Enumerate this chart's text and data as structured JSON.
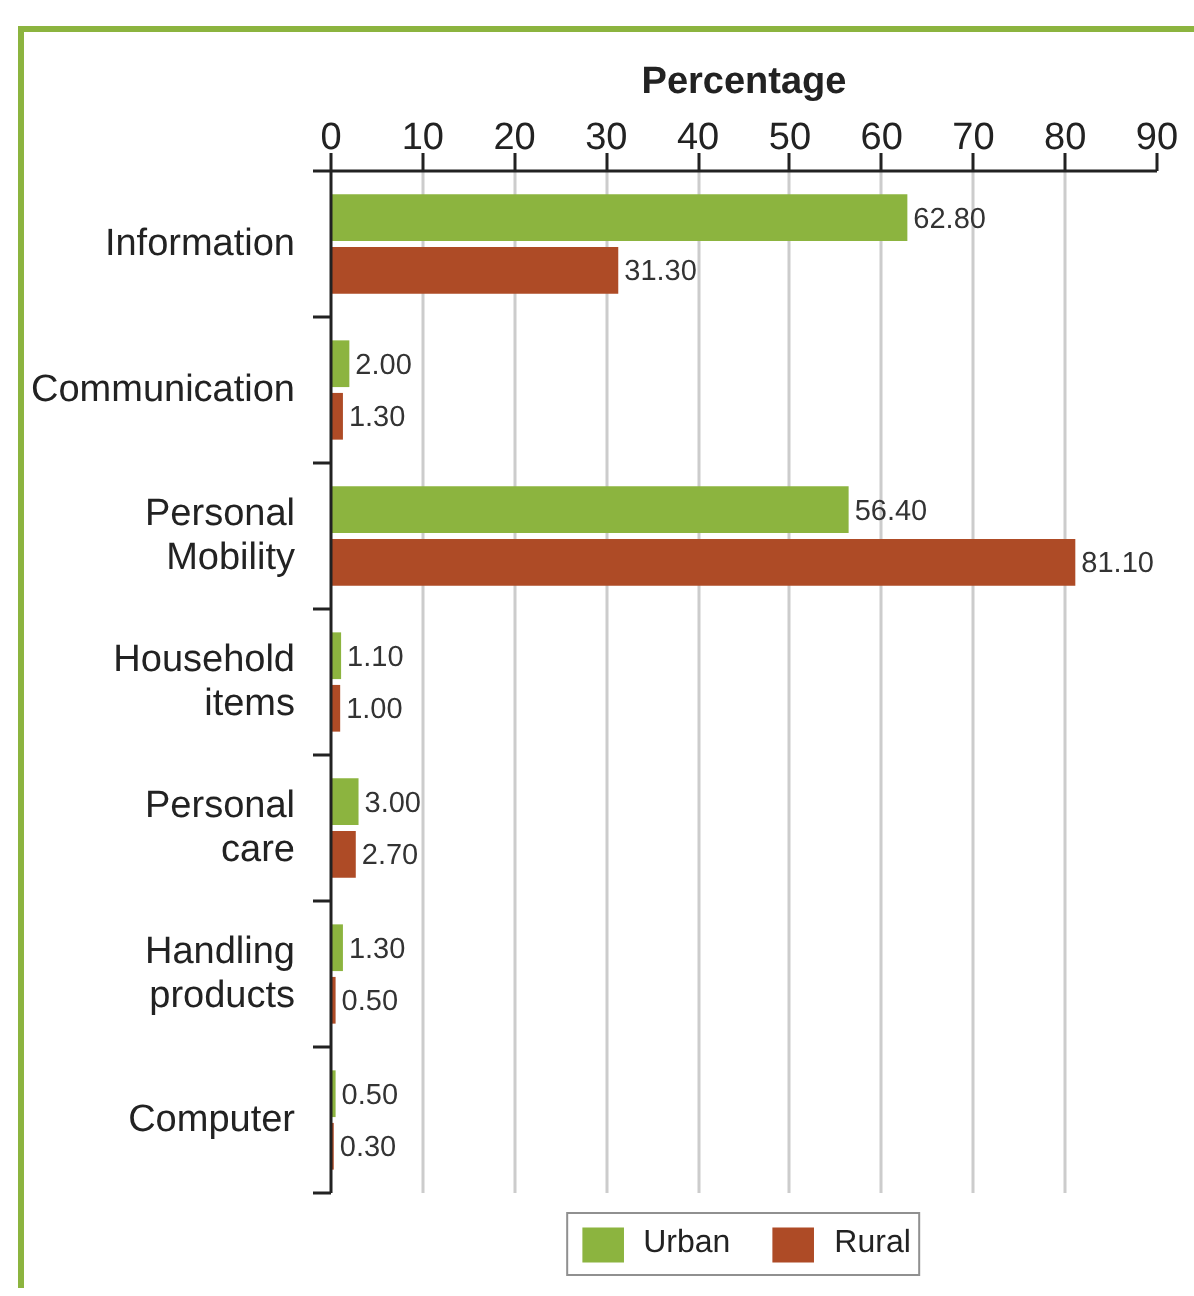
{
  "chart_data": {
    "type": "bar",
    "orientation": "horizontal",
    "xlabel": "Percentage",
    "categories": [
      "Information",
      "Communication",
      "Personal Mobility",
      "Household items",
      "Personal care",
      "Handling products",
      "Computer"
    ],
    "series": [
      {
        "name": "Urban",
        "color": "#8cb43f",
        "values": [
          62.8,
          2.0,
          56.4,
          1.1,
          3.0,
          1.3,
          0.5
        ],
        "value_labels": [
          "62.80",
          "2.00",
          "56.40",
          "1.10",
          "3.00",
          "1.30",
          "0.50"
        ]
      },
      {
        "name": "Rural",
        "color": "#ae4b26",
        "values": [
          31.3,
          1.3,
          81.1,
          1.0,
          2.7,
          0.5,
          0.3
        ],
        "value_labels": [
          "31.30",
          "1.30",
          "81.10",
          "1.00",
          "2.70",
          "0.50",
          "0.30"
        ]
      }
    ],
    "xlim": [
      0,
      90
    ],
    "xticks": [
      0,
      10,
      20,
      30,
      40,
      50,
      60,
      70,
      80,
      90
    ],
    "grid": "x",
    "legend": "bottom"
  }
}
